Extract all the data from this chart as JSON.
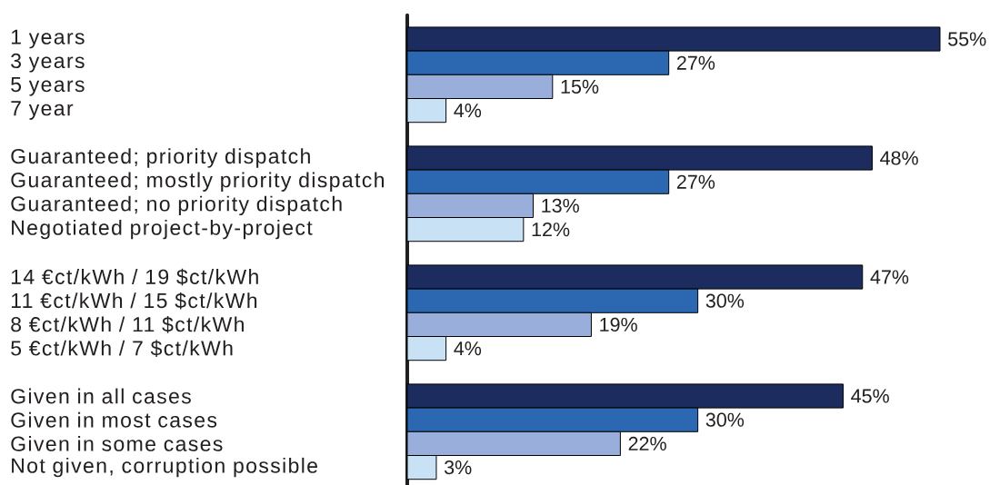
{
  "chart_data": {
    "type": "bar",
    "orientation": "horizontal",
    "categories": [
      "1 years",
      "3 years",
      "5 years",
      "7 year",
      null,
      "Guaranteed; priority dispatch",
      "Guaranteed; mostly priority dispatch",
      "Guaranteed; no priority dispatch",
      "Negotiated project-by-project",
      null,
      "14 €ct/kWh / 19 $ct/kWh",
      "11 €ct/kWh / 15 $ct/kWh",
      "8 €ct/kWh / 11 $ct/kWh",
      "5 €ct/kWh / 7 $ct/kWh",
      null,
      "Given in all cases",
      "Given in most cases",
      "Given in some cases",
      "Not given, corruption possible"
    ],
    "values": [
      55,
      27,
      15,
      4,
      null,
      48,
      27,
      13,
      12,
      null,
      47,
      30,
      19,
      4,
      null,
      45,
      30,
      22,
      3
    ],
    "colors": [
      "#1d2c5e",
      "#2b68b1",
      "#9aaedb",
      "#c9e1f4",
      null,
      "#1d2c5e",
      "#2b68b1",
      "#9aaedb",
      "#c9e1f4",
      null,
      "#1d2c5e",
      "#2b68b1",
      "#9aaedb",
      "#c9e1f4",
      null,
      "#1d2c5e",
      "#2b68b1",
      "#9aaedb",
      "#c9e1f4"
    ],
    "value_labels": [
      "55%",
      "27%",
      "15%",
      "4%",
      null,
      "48%",
      "27%",
      "13%",
      "12%",
      null,
      "47%",
      "30%",
      "19%",
      "4%",
      null,
      "45%",
      "30%",
      "22%",
      "3%"
    ],
    "xlim": [
      0,
      55
    ],
    "tick_labels": "y"
  }
}
